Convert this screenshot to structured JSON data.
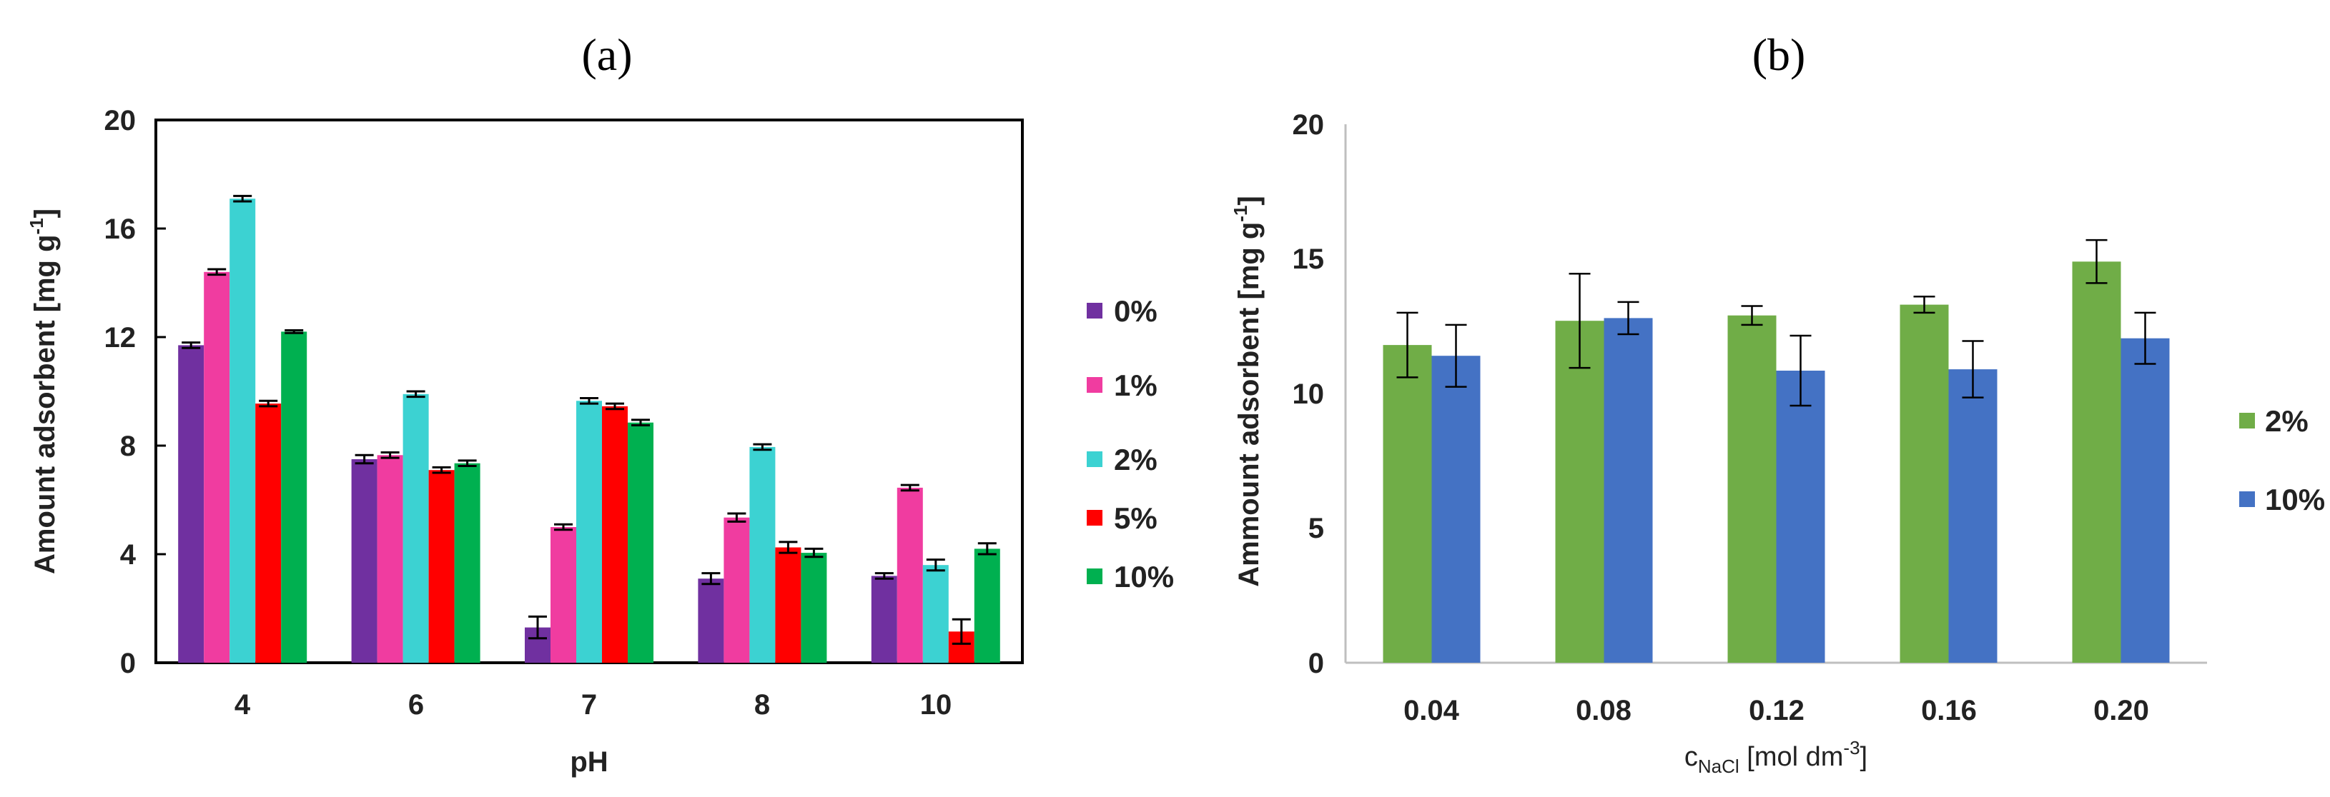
{
  "chart_data": [
    {
      "type": "bar",
      "panel_label": "(a)",
      "categories": [
        "4",
        "6",
        "7",
        "8",
        "10"
      ],
      "series": [
        {
          "name": "0%",
          "color": "#7030a0",
          "values": [
            11.7,
            7.5,
            1.3,
            3.1,
            3.2
          ],
          "errors": [
            0.1,
            0.15,
            0.4,
            0.2,
            0.1
          ]
        },
        {
          "name": "1%",
          "color": "#f03ca0",
          "values": [
            14.4,
            7.65,
            5.0,
            5.35,
            6.45
          ],
          "errors": [
            0.1,
            0.1,
            0.1,
            0.15,
            0.1
          ]
        },
        {
          "name": "2%",
          "color": "#3cd2d2",
          "values": [
            17.1,
            9.9,
            9.65,
            7.95,
            3.6
          ],
          "errors": [
            0.1,
            0.1,
            0.1,
            0.1,
            0.2
          ]
        },
        {
          "name": "5%",
          "color": "#ff0000",
          "values": [
            9.55,
            7.1,
            9.45,
            4.25,
            1.15
          ],
          "errors": [
            0.1,
            0.1,
            0.1,
            0.2,
            0.45
          ]
        },
        {
          "name": "10%",
          "color": "#00b050",
          "values": [
            12.2,
            7.35,
            8.85,
            4.05,
            4.2
          ],
          "errors": [
            0.05,
            0.1,
            0.1,
            0.15,
            0.2
          ]
        }
      ],
      "xlabel": "pH",
      "ylabel": "Amount adsorbent [mg g",
      "ylabel_sup": "-1",
      "ylabel_end": "]",
      "ylim": [
        0,
        20
      ],
      "yticks": [
        "0",
        "4",
        "8",
        "12",
        "16",
        "20"
      ],
      "grid": false,
      "legend": "right"
    },
    {
      "type": "bar",
      "panel_label": "(b)",
      "categories": [
        "0.04",
        "0.08",
        "0.12",
        "0.16",
        "0.20"
      ],
      "series": [
        {
          "name": "2%",
          "color": "#70ad47",
          "values": [
            11.8,
            12.7,
            12.9,
            13.3,
            14.9
          ],
          "errors": [
            1.2,
            1.75,
            0.35,
            0.3,
            0.8
          ]
        },
        {
          "name": "10%",
          "color": "#4472c4",
          "values": [
            11.4,
            12.8,
            10.85,
            10.9,
            12.05
          ],
          "errors": [
            1.15,
            0.6,
            1.3,
            1.05,
            0.95
          ]
        }
      ],
      "xlabel": "c",
      "xlabel_sub": "NaCl",
      "xlabel_end": " [mol dm",
      "xlabel_sup": "-3",
      "xlabel_close": "]",
      "ylabel": "Ammount adsorbent [mg g",
      "ylabel_sup": "-1",
      "ylabel_end": "]",
      "ylim": [
        0,
        20
      ],
      "yticks": [
        "0",
        "5",
        "10",
        "15",
        "20"
      ],
      "grid": false,
      "legend": "right"
    }
  ]
}
